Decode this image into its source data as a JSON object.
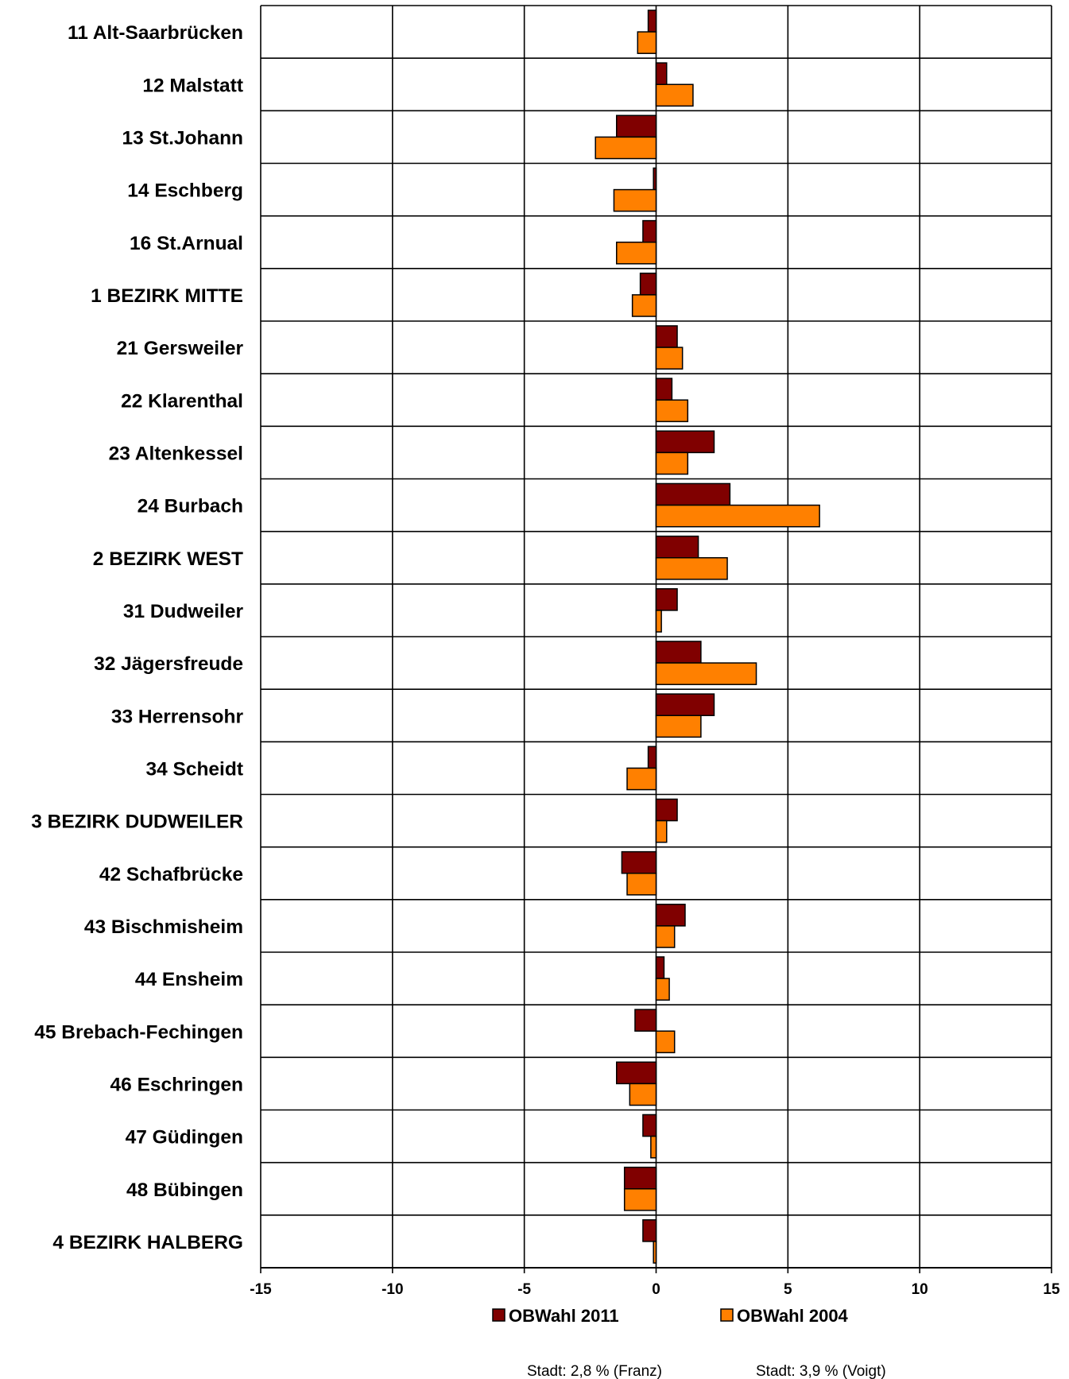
{
  "colors": {
    "series_2011": "#800000",
    "series_2004": "#ff8000",
    "stroke": "#000000",
    "grid": "#000000"
  },
  "chart_data": {
    "type": "bar",
    "orientation": "horizontal",
    "categories": [
      "11 Alt-Saarbrücken",
      "12 Malstatt",
      "13 St.Johann",
      "14 Eschberg",
      "16 St.Arnual",
      "1 BEZIRK MITTE",
      "21 Gersweiler",
      "22 Klarenthal",
      "23 Altenkessel",
      "24 Burbach",
      "2 BEZIRK WEST",
      "31 Dudweiler",
      "32 Jägersfreude",
      "33 Herrensohr",
      "34 Scheidt",
      "3 BEZIRK DUDWEILER",
      "42 Schafbrücke",
      "43 Bischmisheim",
      "44 Ensheim",
      "45 Brebach-Fechingen",
      "46 Eschringen",
      "47 Güdingen",
      "48 Bübingen",
      "4 BEZIRK HALBERG"
    ],
    "series": [
      {
        "name": "OBWahl 2011",
        "values": [
          -0.3,
          0.4,
          -1.5,
          -0.1,
          -0.5,
          -0.6,
          0.8,
          0.6,
          2.2,
          2.8,
          1.6,
          0.8,
          1.7,
          2.2,
          -0.3,
          0.8,
          -1.3,
          1.1,
          0.3,
          -0.8,
          -1.5,
          -0.5,
          -1.2,
          -0.5
        ]
      },
      {
        "name": "OBWahl 2004",
        "values": [
          -0.7,
          1.4,
          -2.3,
          -1.6,
          -1.5,
          -0.9,
          1.0,
          1.2,
          1.2,
          6.2,
          2.7,
          0.2,
          3.8,
          1.7,
          -1.1,
          0.4,
          -1.1,
          0.7,
          0.5,
          0.7,
          -1.0,
          -0.2,
          -1.2,
          -0.1
        ]
      }
    ],
    "xlim": [
      -15,
      15
    ],
    "xticks": [
      -15,
      -10,
      -5,
      0,
      5,
      10,
      15
    ],
    "xlabel": "",
    "ylabel": "",
    "title": "",
    "grid": true,
    "legend_position": "bottom",
    "footnotes": [
      "Stadt: 2,8 % (Franz)",
      "Stadt: 3,9 % (Voigt)"
    ]
  }
}
